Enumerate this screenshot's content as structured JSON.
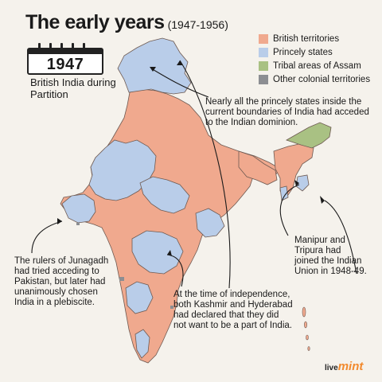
{
  "title": {
    "main": "The early years",
    "period": "(1947-1956)"
  },
  "calendar": {
    "year": "1947"
  },
  "subtitle": "British India during Partition",
  "legend": [
    {
      "label": "British territories",
      "color": "#f0a98e"
    },
    {
      "label": "Princely states",
      "color": "#b9cde9"
    },
    {
      "label": "Tribal areas of Assam",
      "color": "#a9c183"
    },
    {
      "label": "Other colonial territories",
      "color": "#8c8e92"
    }
  ],
  "annotations": {
    "princely": "Nearly all the princely states inside the current boundaries of India had acceded to the Indian dominion.",
    "manipur": "Manipur and Tripura had joined the Indian Union in 1948-49.",
    "junagadh": "The rulers of Junagadh had tried acceding to Pakistan, but later had unanimously chosen India in a plebiscite.",
    "kashmir": "At the time of independence, both Kashmir and Hyderabad had declared that they did not want to be a part of India."
  },
  "brand": {
    "live": "live",
    "mint": "mint"
  }
}
